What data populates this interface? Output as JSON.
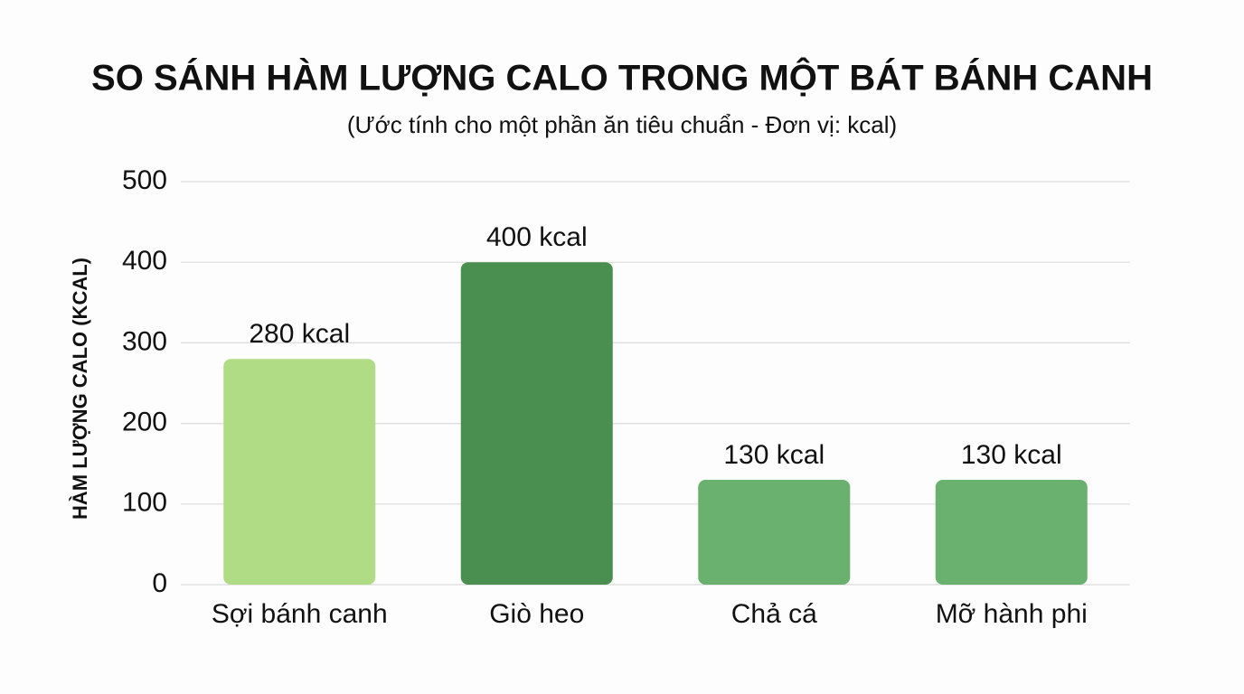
{
  "chart_data": {
    "type": "bar",
    "title": "SO SÁNH HÀM LƯỢNG CALO TRONG MỘT BÁT BÁNH CANH",
    "subtitle": "(Ước tính cho một phần ăn tiêu chuẩn - Đơn vị: kcal)",
    "y_label": "HÀM LƯỢNG CALO (KCAL)",
    "categories": [
      "Sợi bánh canh",
      "Giò heo",
      "Chả cá",
      "Mỡ hành phi"
    ],
    "values": [
      280,
      400,
      130,
      130
    ],
    "value_labels": [
      "280 kcal",
      "400 kcal",
      "130 kcal",
      "130 kcal"
    ],
    "colors": [
      "#b1dc86",
      "#4a8f4f",
      "#6ab06e",
      "#6ab06e"
    ],
    "ylim": [
      0,
      500
    ],
    "yticks": [
      0,
      100,
      200,
      300,
      400,
      500
    ],
    "grid": true
  }
}
